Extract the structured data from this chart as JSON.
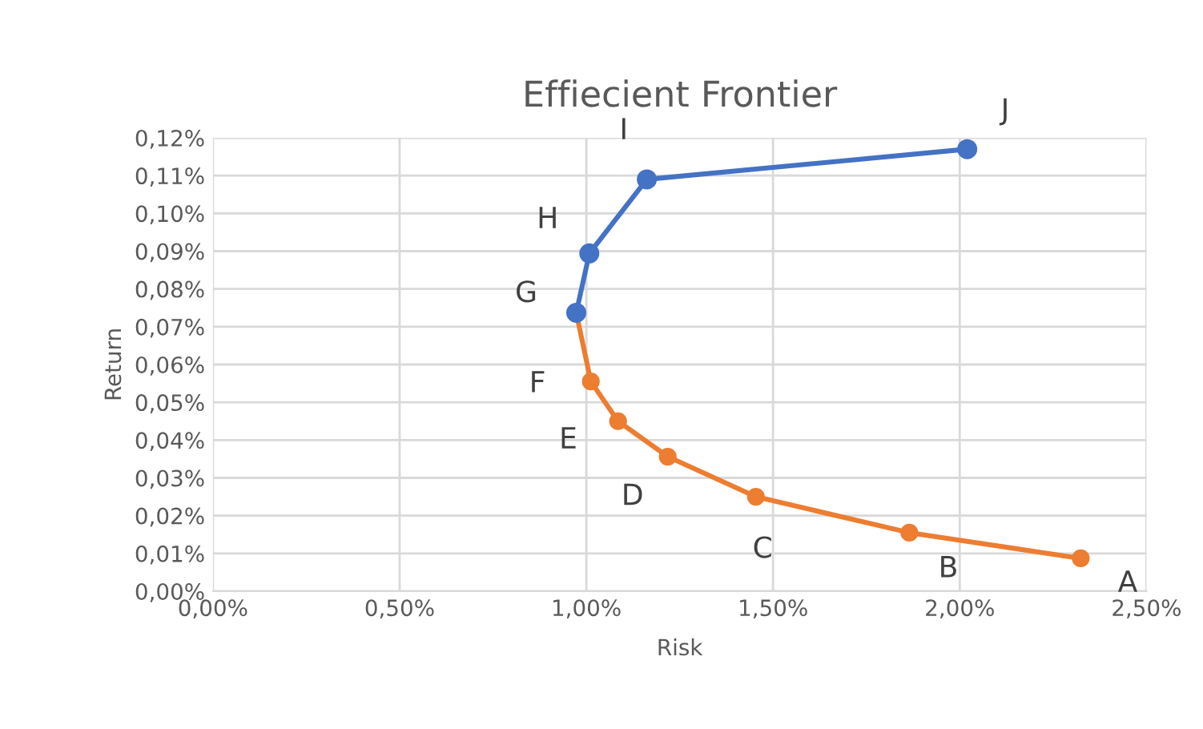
{
  "chart_data": {
    "type": "line",
    "title": "Effiecient Frontier",
    "xlabel": "Risk",
    "ylabel": "Return",
    "series": [
      {
        "color": "#4472c4",
        "x": [
          0.973,
          1.008,
          1.162,
          2.02
        ],
        "values": [
          0.0737,
          0.0894,
          0.109,
          0.117
        ]
      },
      {
        "color": "#ed7d31",
        "x": [
          0.973,
          1.012,
          1.085,
          1.218,
          1.454,
          1.865,
          2.324
        ],
        "values": [
          0.0737,
          0.0555,
          0.045,
          0.0356,
          0.025,
          0.0155,
          0.0087
        ]
      }
    ],
    "annotations": [
      {
        "text": "J",
        "x": 2.02,
        "y": 0.117
      },
      {
        "text": "I",
        "x": 1.162,
        "y": 0.109
      },
      {
        "text": "H",
        "x": 1.008,
        "y": 0.0894
      },
      {
        "text": "G",
        "x": 0.973,
        "y": 0.0737
      },
      {
        "text": "F",
        "x": 1.012,
        "y": 0.0555
      },
      {
        "text": "E",
        "x": 1.085,
        "y": 0.045
      },
      {
        "text": "D",
        "x": 1.218,
        "y": 0.0356
      },
      {
        "text": "C",
        "x": 1.454,
        "y": 0.025
      },
      {
        "text": "B",
        "x": 1.865,
        "y": 0.0155
      },
      {
        "text": "A",
        "x": 2.324,
        "y": 0.0087
      }
    ],
    "xlim": [
      0,
      2.5
    ],
    "ylim": [
      0,
      0.12
    ],
    "xticks": [
      {
        "value": 0,
        "label": "0,00%"
      },
      {
        "value": 0.5,
        "label": "0,50%"
      },
      {
        "value": 1,
        "label": "1,00%"
      },
      {
        "value": 1.5,
        "label": "1,50%"
      },
      {
        "value": 2,
        "label": "2,00%"
      },
      {
        "value": 2.5,
        "label": "2,50%"
      }
    ],
    "yticks": [
      {
        "value": 0,
        "label": "0,00%"
      },
      {
        "value": 0.01,
        "label": "0,01%"
      },
      {
        "value": 0.02,
        "label": "0,02%"
      },
      {
        "value": 0.03,
        "label": "0,03%"
      },
      {
        "value": 0.04,
        "label": "0,04%"
      },
      {
        "value": 0.05,
        "label": "0,05%"
      },
      {
        "value": 0.06,
        "label": "0,06%"
      },
      {
        "value": 0.07,
        "label": "0,07%"
      },
      {
        "value": 0.08,
        "label": "0,08%"
      },
      {
        "value": 0.09,
        "label": "0,09%"
      },
      {
        "value": 0.1,
        "label": "0,10%"
      },
      {
        "value": 0.11,
        "label": "0,11%"
      },
      {
        "value": 0.12,
        "label": "0,12%"
      }
    ],
    "grid": true,
    "marker": "circle",
    "line_style": "solid"
  }
}
